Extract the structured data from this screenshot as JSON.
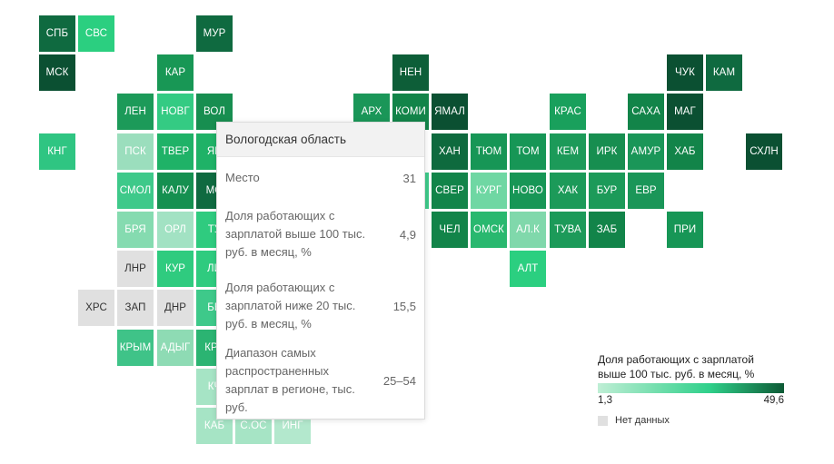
{
  "map": {
    "cells": [
      {
        "code": "СПБ",
        "color": "#0f6a40"
      },
      {
        "code": "СВС",
        "color": "#2bcf80"
      },
      {
        "code": "МУР",
        "color": "#0f6a40"
      },
      {
        "code": "МСК",
        "color": "#0b5032"
      },
      {
        "code": "КАР",
        "color": "#189755"
      },
      {
        "code": "НЕН",
        "color": "#0d5e38"
      },
      {
        "code": "ЧУК",
        "color": "#0b5032"
      },
      {
        "code": "КАМ",
        "color": "#0f6a40"
      },
      {
        "code": "ЛЕН",
        "color": "#1c9a59"
      },
      {
        "code": "НОВГ",
        "color": "#34cb83"
      },
      {
        "code": "ВОЛ",
        "color": "#178e50"
      },
      {
        "code": "АРХ",
        "color": "#1a9658"
      },
      {
        "code": "КОМИ",
        "color": "#128449"
      },
      {
        "code": "ЯМАЛ",
        "color": "#0b5032"
      },
      {
        "code": "КРАС",
        "color": "#19a05c"
      },
      {
        "code": "САХА",
        "color": "#128449"
      },
      {
        "code": "МАГ",
        "color": "#0b5032"
      },
      {
        "code": "КНГ",
        "color": "#2fc582"
      },
      {
        "code": "ПСК",
        "color": "#9bdebd"
      },
      {
        "code": "ТВЕР",
        "color": "#1fb267"
      },
      {
        "code": "ЯР",
        "color": "#1fb267"
      },
      {
        "code": "ХАН",
        "color": "#0e6a3e"
      },
      {
        "code": "ТЮМ",
        "color": "#179656"
      },
      {
        "code": "ТОМ",
        "color": "#179656"
      },
      {
        "code": "КЕМ",
        "color": "#1c9a59"
      },
      {
        "code": "ИРК",
        "color": "#178e50"
      },
      {
        "code": "АМУР",
        "color": "#1a9658"
      },
      {
        "code": "ХАБ",
        "color": "#128449"
      },
      {
        "code": "СХЛН",
        "color": "#0b5032"
      },
      {
        "code": "СМОЛ",
        "color": "#3ec98a"
      },
      {
        "code": "КАЛУ",
        "color": "#159050"
      },
      {
        "code": "МО",
        "color": "#0f6a40"
      },
      {
        "code": "Р",
        "color": "#3ec98a"
      },
      {
        "code": "СВЕР",
        "color": "#128449"
      },
      {
        "code": "КУРГ",
        "color": "#6fd7a3"
      },
      {
        "code": "НОВО",
        "color": "#179656"
      },
      {
        "code": "ХАК",
        "color": "#1c9a59"
      },
      {
        "code": "БУР",
        "color": "#1c9a59"
      },
      {
        "code": "ЕВР",
        "color": "#1a9658"
      },
      {
        "code": "БРЯ",
        "color": "#85dbb0"
      },
      {
        "code": "ОРЛ",
        "color": "#a2e2c3"
      },
      {
        "code": "ТУ",
        "color": "#2fcb7f"
      },
      {
        "code": "ЧЕЛ",
        "color": "#128449"
      },
      {
        "code": "ОМСК",
        "color": "#29b86f"
      },
      {
        "code": "АЛ.К",
        "color": "#80d8ab"
      },
      {
        "code": "ТУВА",
        "color": "#1c9a59"
      },
      {
        "code": "ЗАБ",
        "color": "#128449"
      },
      {
        "code": "ПРИ",
        "color": "#179656"
      },
      {
        "code": "ЛНР",
        "color": "#e0e0e0",
        "nodata": true
      },
      {
        "code": "КУР",
        "color": "#2fcb7f"
      },
      {
        "code": "ЛИ",
        "color": "#2fcb7f"
      },
      {
        "code": "АЛТ",
        "color": "#2bcf80"
      },
      {
        "code": "ХРС",
        "color": "#e0e0e0",
        "nodata": true
      },
      {
        "code": "ЗАП",
        "color": "#e0e0e0",
        "nodata": true
      },
      {
        "code": "ДНР",
        "color": "#e0e0e0",
        "nodata": true
      },
      {
        "code": "БЕ",
        "color": "#3ec98a"
      },
      {
        "code": "КРЫМ",
        "color": "#3fc388"
      },
      {
        "code": "АДЫГ",
        "color": "#8edbb4"
      },
      {
        "code": "КРА",
        "color": "#2bb472"
      },
      {
        "code": "КЧ",
        "color": "#a6e4c5"
      },
      {
        "code": "КАБ",
        "color": "#a6e4c5"
      },
      {
        "code": "С.ОС",
        "color": "#a6e4c5"
      },
      {
        "code": "ИНГ",
        "color": "#b3e8cd"
      }
    ]
  },
  "tooltip": {
    "title": "Вологодская область",
    "rows": [
      {
        "label": "Место",
        "value": "31"
      },
      {
        "label": "Доля работающих с зарплатой выше 100 тыс. руб. в месяц, %",
        "value": "4,9"
      },
      {
        "label": "Доля работающих с зарплатой ниже 20 тыс. руб. в месяц, %",
        "value": "15,5"
      },
      {
        "label": "Диапазон самых распространенных зарплат в регионе, тыс. руб.",
        "value": "25–54"
      }
    ]
  },
  "legend": {
    "title": "Доля работающих с зарплатой выше 100 тыс. руб. в месяц, %",
    "min": "1,3",
    "max": "49,6",
    "no_data_label": "Нет данных"
  }
}
